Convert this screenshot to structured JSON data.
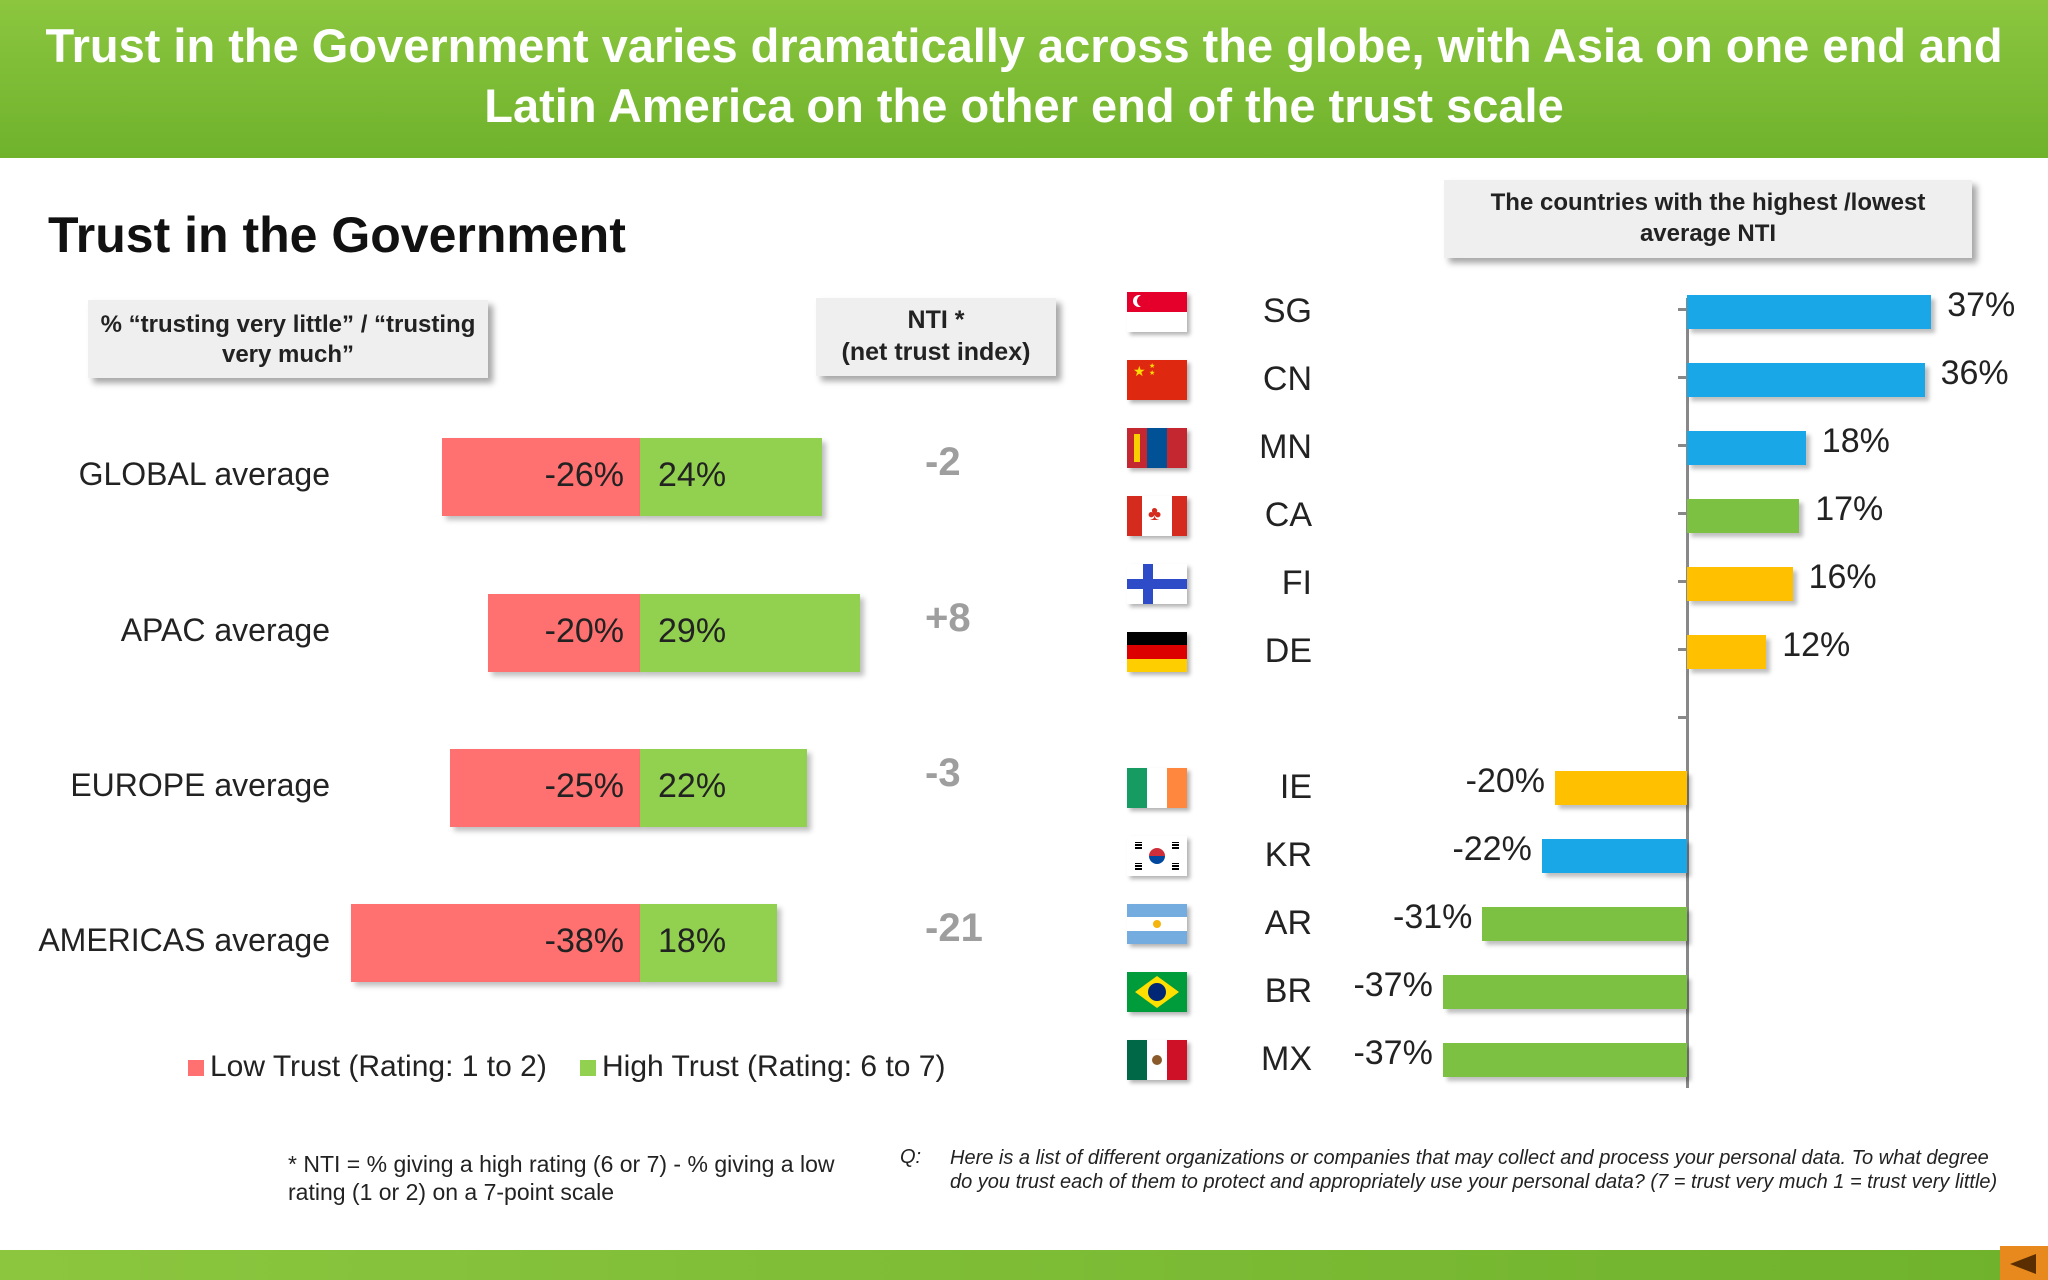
{
  "header": {
    "title": "Trust in the Government varies dramatically across the globe, with Asia on one end and Latin America on the other end of the trust scale"
  },
  "main_title": "Trust in the Government",
  "left_box_label": "% “trusting very  little” / “trusting very much”",
  "nti_box": {
    "line1": "NTI *",
    "line2": "(net trust index)"
  },
  "right_box_label": "The countries with the highest /lowest average NTI",
  "legend": {
    "low": "Low Trust (Rating: 1 to 2)",
    "high": "High Trust (Rating: 6 to 7)"
  },
  "footnote": "* NTI = % giving a high rating (6 or 7) - % giving a low rating (1 or 2) on a 7-point scale",
  "question": {
    "prefix": "Q:",
    "text": "Here is a list of different organizations or companies that may collect and process your personal data.  To what degree do you trust each of them to protect and appropriately use your personal data? (7 = trust very much 1 = trust very little)"
  },
  "colors": {
    "header_green": "#7dbd35",
    "low": "#ff7070",
    "high": "#92d050",
    "apac": "#1aa7e8",
    "americas": "#7cc142",
    "europe": "#ffc000",
    "nti_gray": "#9e9e9e"
  },
  "chart_data": [
    {
      "type": "bar",
      "orientation": "horizontal-diverging",
      "categories": [
        "GLOBAL average",
        "APAC average",
        "EUROPE average",
        "AMERICAS average"
      ],
      "series": [
        {
          "name": "Low Trust (Rating: 1 to 2)",
          "values": [
            -26,
            -20,
            -25,
            -38
          ],
          "labels": [
            "-26%",
            "-20%",
            "-25%",
            "-38%"
          ]
        },
        {
          "name": "High Trust (Rating: 6 to 7)",
          "values": [
            24,
            29,
            22,
            18
          ],
          "labels": [
            "24%",
            "29%",
            "22%",
            "18%"
          ]
        }
      ],
      "nti": [
        -2,
        8,
        -3,
        -21
      ],
      "nti_labels": [
        "-2",
        "+8",
        "-3",
        "-21"
      ],
      "legend": "bottom"
    },
    {
      "type": "bar",
      "orientation": "horizontal-diverging",
      "categories": [
        "SG",
        "CN",
        "MN",
        "CA",
        "FI",
        "DE",
        "IE",
        "KR",
        "AR",
        "BR",
        "MX"
      ],
      "values": [
        37,
        36,
        18,
        17,
        16,
        12,
        -20,
        -22,
        -31,
        -37,
        -37
      ],
      "labels": [
        "37%",
        "36%",
        "18%",
        "17%",
        "16%",
        "12%",
        "-20%",
        "-22%",
        "-31%",
        "-37%",
        "-37%"
      ],
      "region": [
        "apac",
        "apac",
        "apac",
        "americas",
        "europe",
        "europe",
        "europe",
        "apac",
        "americas",
        "americas",
        "americas"
      ],
      "flags": [
        "singapore-flag",
        "china-flag",
        "mongolia-flag",
        "canada-flag",
        "finland-flag",
        "germany-flag",
        "ireland-flag",
        "south-korea-flag",
        "argentina-flag",
        "brazil-flag",
        "mexico-flag"
      ]
    }
  ]
}
